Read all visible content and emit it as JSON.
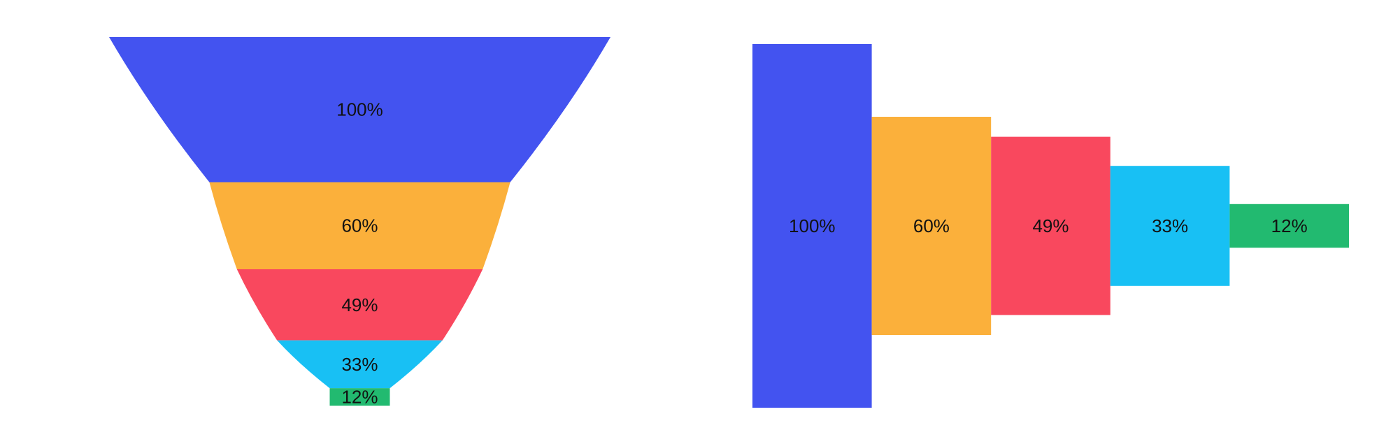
{
  "page": {
    "background": "#ffffff",
    "label_color": "#111111"
  },
  "chart_data": [
    {
      "type": "funnel",
      "orientation": "vertical",
      "shape": "curved-sides-tapering-to-rect-tip",
      "title": "",
      "values": [
        100,
        60,
        49,
        33,
        12
      ],
      "labels": [
        "100%",
        "60%",
        "49%",
        "33%",
        "12%"
      ],
      "colors": [
        "#4353f0",
        "#fbb03b",
        "#f9485e",
        "#18c0f4",
        "#22ba70"
      ],
      "label_position": "inside-center",
      "layout_hint": "segment heights proportional to values; each segment bottom width = next value's share of top width; last segment is a rectangle; grid off; no axes"
    },
    {
      "type": "funnel",
      "orientation": "horizontal",
      "shape": "equal-width-centered-bars",
      "title": "",
      "values": [
        100,
        60,
        49,
        33,
        12
      ],
      "labels": [
        "100%",
        "60%",
        "49%",
        "33%",
        "12%"
      ],
      "colors": [
        "#4353f0",
        "#fbb03b",
        "#f9485e",
        "#18c0f4",
        "#22ba70"
      ],
      "label_position": "inside-center",
      "layout_hint": "adjacent equal-width columns, heights proportional to values, vertically centered; grid off; no axes"
    }
  ]
}
